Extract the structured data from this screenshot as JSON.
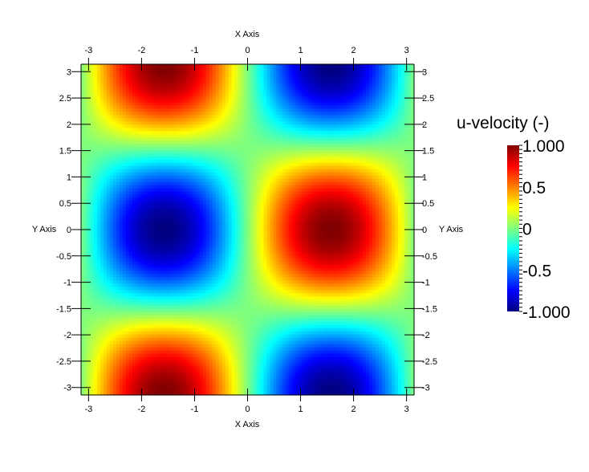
{
  "chart_data": {
    "type": "heatmap",
    "field": "u = sin(x) * cos(y)",
    "x_range": [
      -3.14159,
      3.14159
    ],
    "y_range": [
      -3.14159,
      3.14159
    ],
    "xlabel": "X Axis",
    "ylabel": "Y Axis",
    "x_ticks": [
      -3,
      -2,
      -1,
      0,
      1,
      2,
      3
    ],
    "y_ticks": [
      -3,
      -2.5,
      -2,
      -1.5,
      -1,
      -0.5,
      0,
      0.5,
      1,
      1.5,
      2,
      2.5,
      3
    ],
    "x_tick_labels": [
      "-3",
      "-2",
      "-1",
      "0",
      "1",
      "2",
      "3"
    ],
    "y_tick_labels": [
      "-3",
      "-2.5",
      "-2",
      "-1.5",
      "-1",
      "-0.5",
      "0",
      "0.5",
      "1",
      "1.5",
      "2",
      "2.5",
      "3"
    ],
    "colorbar": {
      "title": "u-velocity (-)",
      "range": [
        -1,
        1
      ],
      "labels": [
        "1.000",
        "0.5",
        "0",
        "-0.5",
        "-1.000"
      ],
      "label_values": [
        1,
        0.5,
        0,
        -0.5,
        -1
      ],
      "colormap": "jet"
    },
    "grid": false
  }
}
